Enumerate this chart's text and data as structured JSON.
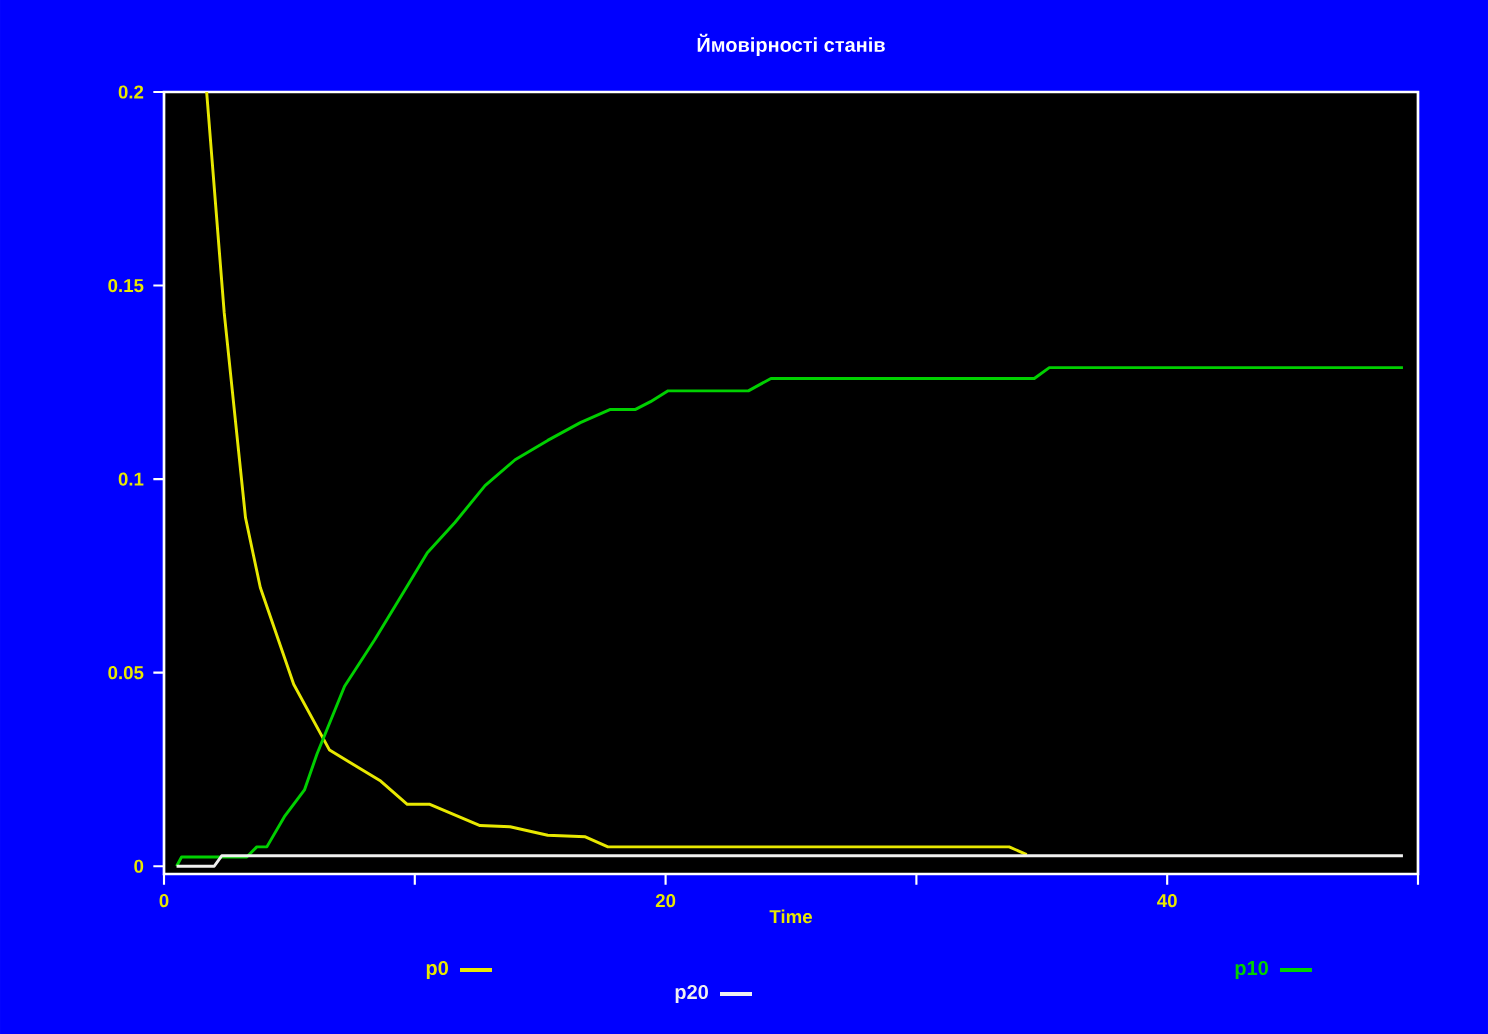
{
  "chart_data": {
    "type": "line",
    "title": "Ймовірності станів",
    "xlabel": "Time",
    "xlim": [
      0,
      50
    ],
    "ylim": [
      -0.002,
      0.2
    ],
    "xticks": [
      0,
      {
        "value": 10,
        "label": null
      },
      20,
      {
        "value": 30,
        "label": null
      },
      40,
      {
        "value": 50,
        "label": null
      }
    ],
    "yticks": [
      0,
      0.05,
      0.1,
      0.15,
      0.2
    ],
    "legend": "bottom",
    "grid": false,
    "series": [
      {
        "name": "p0",
        "color": "#e8e800",
        "x": [
          1.7,
          2.4,
          3.25,
          3.84,
          5.17,
          6.6,
          8.64,
          9.7,
          10.6,
          12.6,
          13.8,
          15.3,
          16.8,
          17.7,
          33.7,
          34.4
        ],
        "values": [
          0.2,
          0.143,
          0.09,
          0.072,
          0.047,
          0.03,
          0.022,
          0.016,
          0.016,
          0.0105,
          0.0102,
          0.008,
          0.0076,
          0.005,
          0.005,
          0.003
        ]
      },
      {
        "name": "p10",
        "color": "#00d000",
        "x": [
          0.5,
          0.7,
          3.3,
          3.7,
          4.1,
          4.8,
          5.6,
          6.1,
          7.2,
          8.4,
          9.7,
          10.5,
          11.6,
          12.8,
          14.0,
          15.3,
          16.6,
          17.8,
          18.8,
          19.4,
          20.1,
          23.3,
          24.2,
          34.7,
          35.3,
          49.4
        ],
        "values": [
          0,
          0.0024,
          0.0024,
          0.005,
          0.005,
          0.0128,
          0.0197,
          0.029,
          0.0465,
          0.0585,
          0.0724,
          0.081,
          0.0888,
          0.0983,
          0.105,
          0.11,
          0.1146,
          0.118,
          0.118,
          0.12,
          0.1228,
          0.1228,
          0.126,
          0.126,
          0.1288,
          0.1288
        ]
      },
      {
        "name": "p20",
        "color": "#f0f0f0",
        "x": [
          0.5,
          2.0,
          2.3,
          49.4
        ],
        "values": [
          0,
          0,
          0.0027,
          0.0027
        ]
      }
    ]
  }
}
